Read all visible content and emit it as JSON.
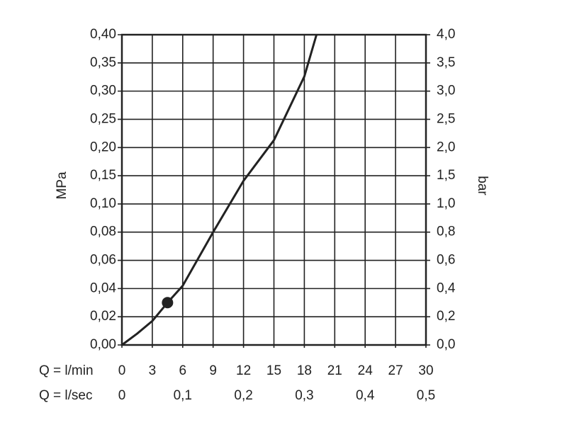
{
  "chart_data": {
    "type": "line",
    "y_label": "MPa",
    "y2_label": "bar",
    "x_label": "Q = l/min",
    "x2_label": "Q = l/sec",
    "xlim": [
      0,
      30
    ],
    "xticks": [
      0,
      3,
      6,
      9,
      12,
      15,
      18,
      21,
      24,
      27,
      30
    ],
    "x2lim": [
      0,
      0.5
    ],
    "x2ticks": [
      0,
      {
        "value": 0.1,
        "label": "0,1"
      },
      {
        "value": 0.2,
        "label": "0,2"
      },
      {
        "value": 0.3,
        "label": "0,3"
      },
      {
        "value": 0.4,
        "label": "0,4"
      },
      {
        "value": 0.5,
        "label": "0,5"
      }
    ],
    "ylim": [
      0,
      0.4
    ],
    "yticks": [
      {
        "value": 0,
        "label": "0,00"
      },
      {
        "value": 0.02,
        "label": "0,02"
      },
      {
        "value": 0.04,
        "label": "0,04"
      },
      {
        "value": 0.06,
        "label": "0,06"
      },
      {
        "value": 0.08,
        "label": "0,08"
      },
      {
        "value": 0.1,
        "label": "0,10"
      },
      {
        "value": 0.15,
        "label": "0,15"
      },
      {
        "value": 0.2,
        "label": "0,20"
      },
      {
        "value": 0.25,
        "label": "0,25"
      },
      {
        "value": 0.3,
        "label": "0,30"
      },
      {
        "value": 0.35,
        "label": "0,35"
      },
      {
        "value": 0.4,
        "label": "0,40"
      }
    ],
    "y2lim": [
      0,
      4
    ],
    "y2ticks": [
      {
        "value": 0,
        "label": "0,0"
      },
      {
        "value": 0.2,
        "label": "0,2"
      },
      {
        "value": 0.4,
        "label": "0,4"
      },
      {
        "value": 0.6,
        "label": "0,6"
      },
      {
        "value": 0.8,
        "label": "0,8"
      },
      {
        "value": 1,
        "label": "1,0"
      },
      {
        "value": 1.5,
        "label": "1,5"
      },
      {
        "value": 2,
        "label": "2,0"
      },
      {
        "value": 2.5,
        "label": "2,5"
      },
      {
        "value": 3,
        "label": "3,0"
      },
      {
        "value": 3.5,
        "label": "3,5"
      },
      {
        "value": 4,
        "label": "4,0"
      }
    ],
    "grid": true,
    "color": "#222",
    "x": [
      0,
      1.5,
      3,
      4.5,
      6,
      9,
      12,
      15,
      18,
      19.2
    ],
    "values": [
      0,
      0.008,
      0.017,
      0.03,
      0.042,
      0.08,
      0.141,
      0.213,
      0.326,
      0.4
    ],
    "marker": {
      "x": 4.5,
      "y": 0.03
    }
  }
}
